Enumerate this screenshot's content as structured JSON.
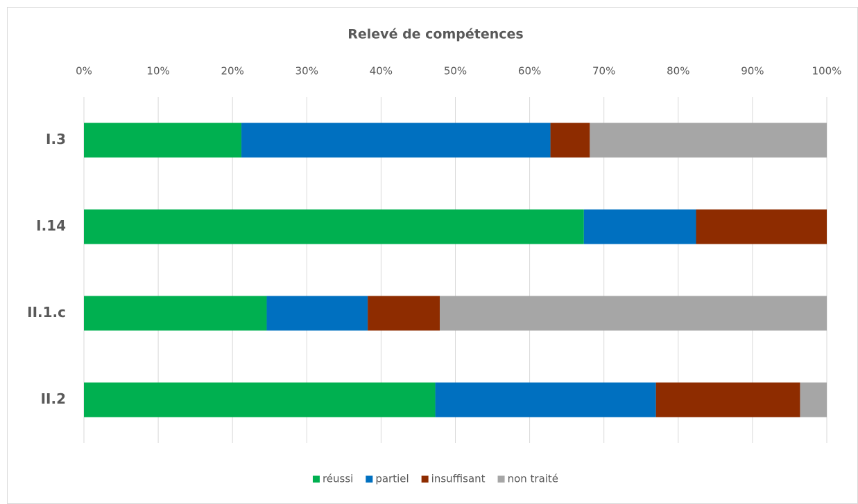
{
  "chart_data": {
    "type": "bar_stacked_horizontal",
    "title": "Relevé de compétences",
    "categories": [
      "I.3",
      "I.14",
      "II.1.c",
      "II.2"
    ],
    "series": [
      {
        "name": "réussi",
        "color": "#00b050",
        "values": [
          21.2,
          67.3,
          24.6,
          47.3
        ]
      },
      {
        "name": "partiel",
        "color": "#0070c0",
        "values": [
          41.6,
          15.1,
          13.6,
          29.7
        ]
      },
      {
        "name": "insuffisant",
        "color": "#8e2c00",
        "values": [
          5.3,
          17.6,
          9.7,
          19.4
        ]
      },
      {
        "name": "non traité",
        "color": "#a6a6a6",
        "values": [
          31.9,
          0,
          52.1,
          3.6
        ]
      }
    ],
    "xlim": [
      0,
      100
    ],
    "xticks": [
      {
        "value": 0,
        "label": "0%"
      },
      {
        "value": 10,
        "label": "10%"
      },
      {
        "value": 20,
        "label": "20%"
      },
      {
        "value": 30,
        "label": "30%"
      },
      {
        "value": 40,
        "label": "40%"
      },
      {
        "value": 50,
        "label": "50%"
      },
      {
        "value": 60,
        "label": "60%"
      },
      {
        "value": 70,
        "label": "70%"
      },
      {
        "value": 80,
        "label": "80%"
      },
      {
        "value": 90,
        "label": "90%"
      },
      {
        "value": 100,
        "label": "100%"
      }
    ],
    "grid": true,
    "legend": "bottom"
  }
}
